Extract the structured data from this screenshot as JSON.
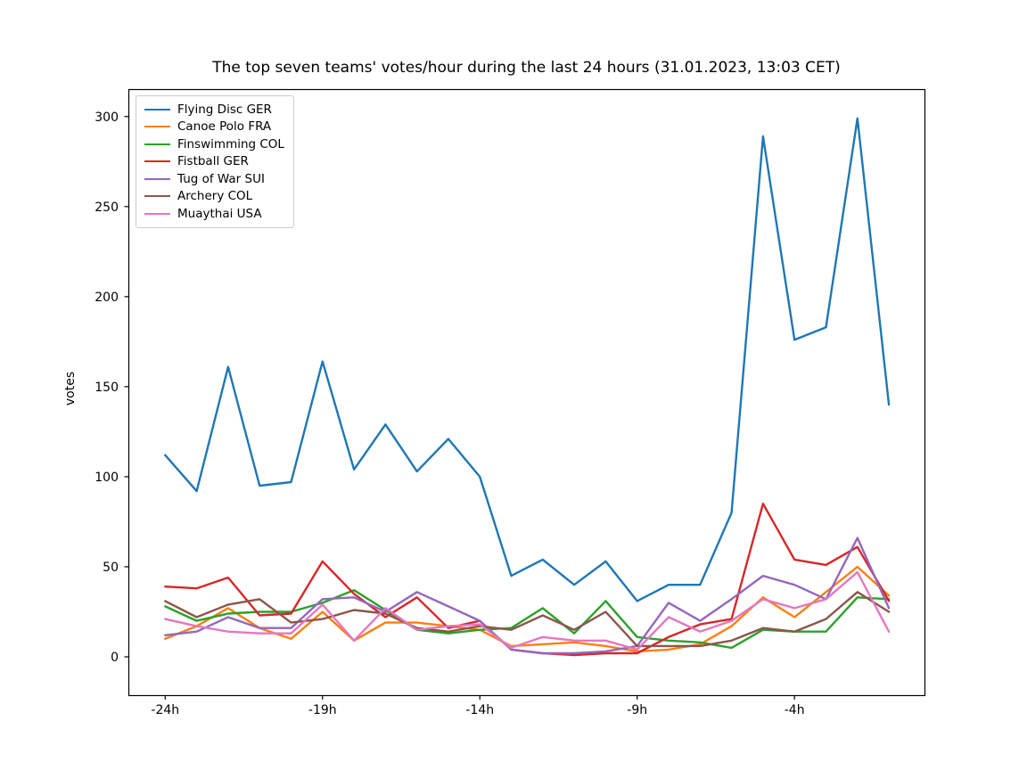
{
  "window": {
    "background": "#ffffff"
  },
  "chart_data": {
    "type": "line",
    "title": "The top seven teams' votes/hour during the last 24 hours (31.01.2023, 13:03 CET)",
    "xlabel": "",
    "ylabel": "votes",
    "grid": false,
    "legend_position": "upper left",
    "xlim": [
      -25.16,
      0.15
    ],
    "ylim": [
      -21,
      315
    ],
    "yticks": [
      0,
      50,
      100,
      150,
      200,
      250,
      300
    ],
    "xticks": [
      {
        "hour": -24,
        "label": "-24h"
      },
      {
        "hour": -19,
        "label": "-19h"
      },
      {
        "hour": -14,
        "label": "-14h"
      },
      {
        "hour": -9,
        "label": "-9h"
      },
      {
        "hour": -4,
        "label": "-4h"
      }
    ],
    "x_hours_before_now": [
      -24,
      -23,
      -22,
      -21,
      -20,
      -19,
      -18,
      -17,
      -16,
      -15,
      -14,
      -13,
      -12,
      -11,
      -10,
      -9,
      -8,
      -7,
      -6,
      -5,
      -4,
      -3,
      -2,
      -1
    ],
    "series": [
      {
        "name": "Flying Disc GER",
        "color": "#1f77b4",
        "values": [
          112,
          92,
          161,
          95,
          97,
          164,
          104,
          129,
          103,
          121,
          100,
          45,
          54,
          40,
          53,
          31,
          40,
          40,
          80,
          289,
          176,
          183,
          299,
          140
        ]
      },
      {
        "name": "Canoe Polo FRA",
        "color": "#ff7f0e",
        "values": [
          10,
          17,
          27,
          16,
          10,
          25,
          9,
          19,
          19,
          17,
          15,
          6,
          7,
          8,
          6,
          3,
          4,
          7,
          17,
          33,
          22,
          36,
          50,
          34
        ]
      },
      {
        "name": "Finswimming COL",
        "color": "#2ca02c",
        "values": [
          28,
          20,
          24,
          25,
          25,
          30,
          37,
          26,
          15,
          13,
          15,
          16,
          27,
          13,
          31,
          11,
          9,
          8,
          5,
          15,
          14,
          14,
          33,
          32
        ]
      },
      {
        "name": "Fistball GER",
        "color": "#d62728",
        "values": [
          39,
          38,
          44,
          23,
          24,
          53,
          35,
          22,
          33,
          16,
          20,
          4,
          2,
          1,
          2,
          2,
          11,
          18,
          21,
          85,
          54,
          51,
          61,
          31
        ]
      },
      {
        "name": "Tug of War SUI",
        "color": "#9467bd",
        "values": [
          12,
          14,
          22,
          16,
          16,
          32,
          33,
          25,
          36,
          28,
          20,
          4,
          2,
          2,
          3,
          6,
          30,
          20,
          32,
          45,
          40,
          32,
          66,
          27
        ]
      },
      {
        "name": "Archery COL",
        "color": "#8c564b",
        "values": [
          31,
          22,
          29,
          32,
          19,
          21,
          26,
          24,
          16,
          14,
          17,
          15,
          23,
          15,
          25,
          6,
          6,
          6,
          9,
          16,
          14,
          21,
          36,
          25
        ]
      },
      {
        "name": "Muaythai USA",
        "color": "#e377c2",
        "values": [
          21,
          17,
          14,
          13,
          13,
          29,
          9,
          27,
          15,
          17,
          18,
          5,
          11,
          9,
          9,
          4,
          22,
          14,
          20,
          32,
          27,
          32,
          47,
          14
        ]
      }
    ]
  }
}
